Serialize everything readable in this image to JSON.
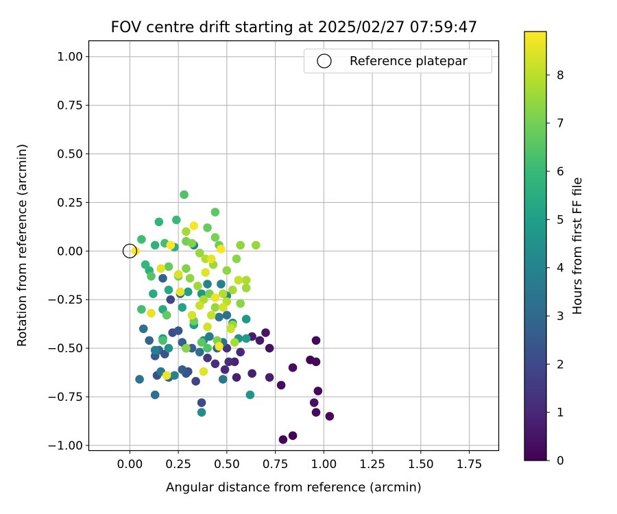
{
  "chart_data": {
    "type": "scatter",
    "title": "FOV centre drift starting at 2025/02/27 07:59:47",
    "xlabel": "Angular distance from reference (arcmin)",
    "ylabel": "Rotation from reference (arcmin)",
    "xlim": [
      -0.21,
      1.9
    ],
    "ylim": [
      -1.025,
      1.08
    ],
    "xticks": [
      "0.00",
      "0.25",
      "0.50",
      "0.75",
      "1.00",
      "1.25",
      "1.50",
      "1.75"
    ],
    "yticks": [
      "1.00",
      "0.75",
      "0.50",
      "0.25",
      "0.00",
      "−0.25",
      "−0.50",
      "−0.75",
      "−1.00"
    ],
    "grid": true,
    "legend": {
      "position": "top-right",
      "entries": [
        "Reference platepar"
      ]
    },
    "reference_point": {
      "x": 0.0,
      "y": 0.0
    },
    "colorbar": {
      "label": "Hours from first FF file",
      "colormap": "viridis",
      "range": [
        0,
        8.9
      ],
      "ticks": [
        "0",
        "1",
        "2",
        "3",
        "4",
        "5",
        "6",
        "7",
        "8"
      ]
    },
    "points": [
      {
        "x": 0.79,
        "y": -0.97,
        "h": 0.1
      },
      {
        "x": 0.84,
        "y": -0.95,
        "h": 0.1
      },
      {
        "x": 1.03,
        "y": -0.85,
        "h": 0.2
      },
      {
        "x": 0.96,
        "y": -0.83,
        "h": 0.3
      },
      {
        "x": 0.95,
        "y": -0.78,
        "h": 0.4
      },
      {
        "x": 0.97,
        "y": -0.72,
        "h": 0.2
      },
      {
        "x": 0.78,
        "y": -0.69,
        "h": 0.3
      },
      {
        "x": 0.93,
        "y": -0.56,
        "h": 0.1
      },
      {
        "x": 0.96,
        "y": -0.57,
        "h": 0.2
      },
      {
        "x": 0.84,
        "y": -0.6,
        "h": 0.3
      },
      {
        "x": 0.96,
        "y": -0.46,
        "h": 0.2
      },
      {
        "x": 0.7,
        "y": -0.42,
        "h": 0.5
      },
      {
        "x": 0.72,
        "y": -0.5,
        "h": 0.4
      },
      {
        "x": 0.67,
        "y": -0.46,
        "h": 0.6
      },
      {
        "x": 0.63,
        "y": -0.44,
        "h": 0.7
      },
      {
        "x": 0.72,
        "y": -0.65,
        "h": 0.7
      },
      {
        "x": 0.63,
        "y": -0.63,
        "h": 0.8
      },
      {
        "x": 0.55,
        "y": -0.65,
        "h": 0.8
      },
      {
        "x": 0.54,
        "y": -0.57,
        "h": 0.9
      },
      {
        "x": 0.49,
        "y": -0.61,
        "h": 1.0
      },
      {
        "x": 0.51,
        "y": -0.57,
        "h": 1.1
      },
      {
        "x": 0.44,
        "y": -0.58,
        "h": 1.2
      },
      {
        "x": 0.57,
        "y": -0.52,
        "h": 1.0
      },
      {
        "x": 0.5,
        "y": -0.5,
        "h": 1.3
      },
      {
        "x": 0.4,
        "y": -0.55,
        "h": 1.4
      },
      {
        "x": 0.34,
        "y": -0.67,
        "h": 1.8
      },
      {
        "x": 0.37,
        "y": -0.78,
        "h": 2.0
      },
      {
        "x": 0.3,
        "y": -0.62,
        "h": 2.1
      },
      {
        "x": 0.29,
        "y": -0.63,
        "h": 2.4
      },
      {
        "x": 0.27,
        "y": -0.61,
        "h": 2.6
      },
      {
        "x": 0.2,
        "y": -0.65,
        "h": 2.7
      },
      {
        "x": 0.14,
        "y": -0.64,
        "h": 2.2
      },
      {
        "x": 0.13,
        "y": -0.74,
        "h": 3.2
      },
      {
        "x": 0.16,
        "y": -0.62,
        "h": 3.6
      },
      {
        "x": 0.23,
        "y": -0.64,
        "h": 3.9
      },
      {
        "x": 0.05,
        "y": -0.66,
        "h": 3.4
      },
      {
        "x": 0.37,
        "y": -0.83,
        "h": 4.3
      },
      {
        "x": 0.48,
        "y": -0.66,
        "h": 3.5
      },
      {
        "x": 0.62,
        "y": -0.74,
        "h": 4.6
      },
      {
        "x": 0.13,
        "y": -0.54,
        "h": 2.5
      },
      {
        "x": 0.15,
        "y": -0.51,
        "h": 3.0
      },
      {
        "x": 0.18,
        "y": -0.53,
        "h": 2.3
      },
      {
        "x": 0.22,
        "y": -0.42,
        "h": 2.1
      },
      {
        "x": 0.25,
        "y": -0.41,
        "h": 2.4
      },
      {
        "x": 0.27,
        "y": -0.47,
        "h": 2.8
      },
      {
        "x": 0.29,
        "y": -0.5,
        "h": 3.1
      },
      {
        "x": 0.32,
        "y": -0.5,
        "h": 2.6
      },
      {
        "x": 0.36,
        "y": -0.52,
        "h": 3.2
      },
      {
        "x": 0.1,
        "y": -0.46,
        "h": 2.9
      },
      {
        "x": 0.07,
        "y": -0.4,
        "h": 3.3
      },
      {
        "x": 0.2,
        "y": -0.5,
        "h": 4.5
      },
      {
        "x": 0.17,
        "y": -0.45,
        "h": 4.8
      },
      {
        "x": 0.13,
        "y": -0.51,
        "h": 3.8
      },
      {
        "x": 0.33,
        "y": -0.38,
        "h": 5.0
      },
      {
        "x": 0.38,
        "y": -0.46,
        "h": 4.1
      },
      {
        "x": 0.41,
        "y": -0.44,
        "h": 3.7
      },
      {
        "x": 0.45,
        "y": -0.5,
        "h": 3.0
      },
      {
        "x": 0.48,
        "y": -0.47,
        "h": 3.4
      },
      {
        "x": 0.46,
        "y": -0.34,
        "h": 3.6
      },
      {
        "x": 0.5,
        "y": -0.33,
        "h": 3.3
      },
      {
        "x": 0.53,
        "y": -0.37,
        "h": 4.2
      },
      {
        "x": 0.56,
        "y": -0.45,
        "h": 4.6
      },
      {
        "x": 0.6,
        "y": -0.35,
        "h": 4.7
      },
      {
        "x": 0.6,
        "y": -0.45,
        "h": 4.9
      },
      {
        "x": 0.21,
        "y": -0.25,
        "h": 1.9
      },
      {
        "x": 0.17,
        "y": -0.14,
        "h": 2.8
      },
      {
        "x": 0.26,
        "y": -0.22,
        "h": 3.1
      },
      {
        "x": 0.33,
        "y": 0.03,
        "h": 3.8
      },
      {
        "x": 0.4,
        "y": -0.17,
        "h": 4.0
      },
      {
        "x": 0.47,
        "y": -0.17,
        "h": 3.9
      },
      {
        "x": 0.5,
        "y": -0.23,
        "h": 4.2
      },
      {
        "x": 0.37,
        "y": -0.22,
        "h": 4.7
      },
      {
        "x": 0.3,
        "y": -0.21,
        "h": 5.0
      },
      {
        "x": 0.27,
        "y": -0.29,
        "h": 5.2
      },
      {
        "x": 0.2,
        "y": -0.2,
        "h": 5.3
      },
      {
        "x": 0.17,
        "y": -0.3,
        "h": 5.5
      },
      {
        "x": 0.12,
        "y": -0.22,
        "h": 5.4
      },
      {
        "x": 0.1,
        "y": -0.1,
        "h": 5.6
      },
      {
        "x": 0.08,
        "y": -0.07,
        "h": 5.9
      },
      {
        "x": 0.06,
        "y": 0.06,
        "h": 6.1
      },
      {
        "x": 0.13,
        "y": 0.03,
        "h": 5.7
      },
      {
        "x": 0.15,
        "y": 0.15,
        "h": 5.8
      },
      {
        "x": 0.24,
        "y": 0.16,
        "h": 6.0
      },
      {
        "x": 0.18,
        "y": 0.04,
        "h": 6.2
      },
      {
        "x": 0.23,
        "y": 0.02,
        "h": 5.6
      },
      {
        "x": 0.28,
        "y": 0.29,
        "h": 6.4
      },
      {
        "x": 0.44,
        "y": 0.2,
        "h": 6.6
      },
      {
        "x": 0.4,
        "y": 0.12,
        "h": 6.8
      },
      {
        "x": 0.44,
        "y": 0.07,
        "h": 7.1
      },
      {
        "x": 0.46,
        "y": 0.03,
        "h": 6.9
      },
      {
        "x": 0.29,
        "y": 0.05,
        "h": 7.0
      },
      {
        "x": 0.32,
        "y": 0.04,
        "h": 7.2
      },
      {
        "x": 0.55,
        "y": -0.04,
        "h": 7.3
      },
      {
        "x": 0.57,
        "y": 0.03,
        "h": 7.4
      },
      {
        "x": 0.65,
        "y": 0.03,
        "h": 7.5
      },
      {
        "x": 0.29,
        "y": 0.1,
        "h": 7.7
      },
      {
        "x": 0.06,
        "y": -0.3,
        "h": 6.2
      },
      {
        "x": 0.19,
        "y": -0.33,
        "h": 6.7
      },
      {
        "x": 0.11,
        "y": -0.13,
        "h": 6.5
      },
      {
        "x": 0.2,
        "y": -0.08,
        "h": 6.8
      },
      {
        "x": 0.25,
        "y": -0.13,
        "h": 7.0
      },
      {
        "x": 0.29,
        "y": -0.09,
        "h": 7.2
      },
      {
        "x": 0.31,
        "y": -0.14,
        "h": 7.4
      },
      {
        "x": 0.35,
        "y": -0.18,
        "h": 7.6
      },
      {
        "x": 0.38,
        "y": -0.25,
        "h": 7.8
      },
      {
        "x": 0.41,
        "y": -0.22,
        "h": 7.1
      },
      {
        "x": 0.44,
        "y": -0.29,
        "h": 7.5
      },
      {
        "x": 0.48,
        "y": -0.22,
        "h": 7.9
      },
      {
        "x": 0.5,
        "y": -0.26,
        "h": 8.0
      },
      {
        "x": 0.53,
        "y": -0.2,
        "h": 7.7
      },
      {
        "x": 0.57,
        "y": -0.27,
        "h": 7.3
      },
      {
        "x": 0.6,
        "y": -0.19,
        "h": 7.6
      },
      {
        "x": 0.6,
        "y": -0.15,
        "h": 7.8
      },
      {
        "x": 0.56,
        "y": -0.15,
        "h": 8.1
      },
      {
        "x": 0.5,
        "y": -0.1,
        "h": 7.4
      },
      {
        "x": 0.43,
        "y": -0.07,
        "h": 7.6
      },
      {
        "x": 0.39,
        "y": -0.04,
        "h": 7.9
      },
      {
        "x": 0.36,
        "y": -0.01,
        "h": 7.5
      },
      {
        "x": 0.33,
        "y": -0.36,
        "h": 6.9
      },
      {
        "x": 0.37,
        "y": -0.47,
        "h": 6.6
      },
      {
        "x": 0.4,
        "y": -0.5,
        "h": 6.4
      },
      {
        "x": 0.45,
        "y": -0.46,
        "h": 7.2
      },
      {
        "x": 0.54,
        "y": -0.47,
        "h": 7.7
      },
      {
        "x": 0.53,
        "y": -0.38,
        "h": 7.5
      },
      {
        "x": 0.17,
        "y": -0.46,
        "h": 6.3
      },
      {
        "x": 0.29,
        "y": -0.5,
        "h": 7.3
      },
      {
        "x": 0.19,
        "y": -0.64,
        "h": 8.7
      },
      {
        "x": 0.38,
        "y": -0.62,
        "h": 8.5
      },
      {
        "x": 0.11,
        "y": -0.32,
        "h": 8.6
      },
      {
        "x": 0.32,
        "y": -0.33,
        "h": 8.4
      },
      {
        "x": 0.4,
        "y": -0.39,
        "h": 8.3
      },
      {
        "x": 0.46,
        "y": -0.49,
        "h": 8.8
      },
      {
        "x": 0.16,
        "y": -0.09,
        "h": 8.5
      },
      {
        "x": 0.25,
        "y": -0.12,
        "h": 8.4
      },
      {
        "x": 0.26,
        "y": -0.21,
        "h": 8.6
      },
      {
        "x": 0.36,
        "y": -0.28,
        "h": 8.2
      },
      {
        "x": 0.42,
        "y": -0.33,
        "h": 8.1
      },
      {
        "x": 0.48,
        "y": -0.29,
        "h": 8.3
      },
      {
        "x": 0.52,
        "y": -0.4,
        "h": 8.2
      },
      {
        "x": 0.44,
        "y": -0.24,
        "h": 8.7
      },
      {
        "x": 0.39,
        "y": -0.11,
        "h": 8.5
      },
      {
        "x": 0.42,
        "y": -0.04,
        "h": 8.6
      },
      {
        "x": 0.47,
        "y": 0.01,
        "h": 8.8
      },
      {
        "x": 0.33,
        "y": 0.13,
        "h": 8.8
      },
      {
        "x": 0.21,
        "y": 0.03,
        "h": 8.9
      },
      {
        "x": 0.03,
        "y": 0.0,
        "h": 8.9
      }
    ]
  }
}
